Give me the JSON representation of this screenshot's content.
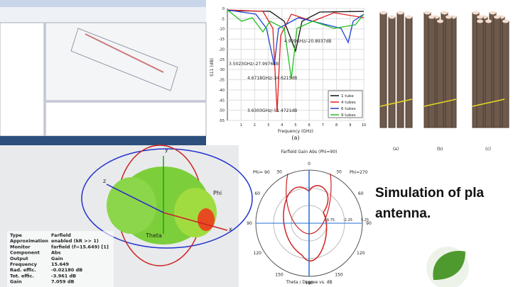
{
  "s11_plot": {
    "y_label": "S11 (dB)",
    "x_label": "Frequency (GHz)",
    "caption": "(a)",
    "y_ticks": [
      "0",
      "-5",
      "-10",
      "-15",
      "-20",
      "-25",
      "-30",
      "-35",
      "-40",
      "-45",
      "-50",
      "-55"
    ],
    "x_ticks": [
      "1",
      "2",
      "3",
      "4",
      "5",
      "6",
      "7",
      "8",
      "9",
      "10"
    ],
    "annotations": [
      "4.999GHz/-20.8937dB",
      "3.5023GHz/-27.9976dB",
      "4.6718GHz/-34.6215dB",
      "3.6303GHz/-51.4721dB"
    ],
    "legend": [
      "1 tube",
      "4 tubes",
      "6 tubes",
      "9 tubes"
    ]
  },
  "tubes": {
    "captions": [
      "(a)",
      "(b)",
      "(c)"
    ]
  },
  "farfield": {
    "axes": [
      "x",
      "y",
      "z"
    ],
    "labels": [
      "Theta",
      "Phi"
    ],
    "info": [
      [
        "Type",
        "Farfield"
      ],
      [
        "Approximation",
        "enabled (kR >> 1)"
      ],
      [
        "Monitor",
        "farfield (f=15.649) [1]"
      ],
      [
        "Component",
        "Abs"
      ],
      [
        "Output",
        "Gain"
      ],
      [
        "Frequency",
        "15.649"
      ],
      [
        "Rad. effic.",
        "-0.02180 dB"
      ],
      [
        "Tot. effic.",
        "-3.961 dB"
      ],
      [
        "Gain",
        "7.059 dB"
      ]
    ]
  },
  "polar": {
    "title": "Farfield Gain Abs (Phi=90)",
    "left_label": "Phi= 90",
    "right_label": "Phi=270",
    "angles": [
      "0",
      "30",
      "60",
      "90",
      "120",
      "150",
      "180",
      "150",
      "120",
      "90",
      "60",
      "30"
    ],
    "radial": [
      "-9.75",
      "-2.25",
      "5.25"
    ],
    "x_label": "Theta / Degree vs. dB"
  },
  "slide_text": {
    "line1": "Simulation of pla",
    "line2": "antenna."
  }
}
